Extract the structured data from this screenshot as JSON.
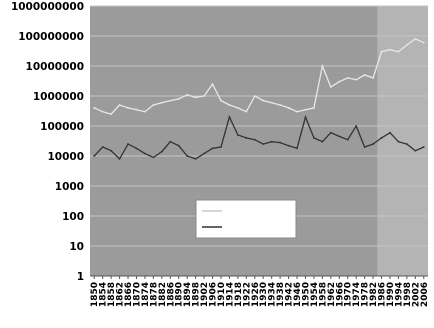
{
  "chart_data": {
    "type": "line",
    "title": "",
    "xlabel": "",
    "ylabel": "",
    "y_scale": "log",
    "ylim": [
      1,
      1000000000
    ],
    "y_tick_labels": [
      "1000000000",
      "100000000",
      "10000000",
      "1000000",
      "100000",
      "10000",
      "1000",
      "100",
      "10",
      "1"
    ],
    "categories": [
      "1850",
      "1854",
      "1858",
      "1862",
      "1866",
      "1870",
      "1874",
      "1878",
      "1882",
      "1886",
      "1890",
      "1894",
      "1898",
      "1902",
      "1906",
      "1910",
      "1914",
      "1918",
      "1922",
      "1926",
      "1930",
      "1934",
      "1938",
      "1942",
      "1946",
      "1950",
      "1954",
      "1958",
      "1962",
      "1966",
      "1970",
      "1974",
      "1978",
      "1982",
      "1986",
      "1990",
      "1994",
      "1998",
      "2002",
      "2006"
    ],
    "x_tick_labels": [
      "1850",
      "1854",
      "1858",
      "1862",
      "1866",
      "1870",
      "1874",
      "1878",
      "1882",
      "1886",
      "1890",
      "1894",
      "1898",
      "1902",
      "1906",
      "1910",
      "1914",
      "1918",
      "1922",
      "1926",
      "1930",
      "1934",
      "1938",
      "1942",
      "1946",
      "1950",
      "1954",
      "1958",
      "1962",
      "1966",
      "1970",
      "1974",
      "1978",
      "1982",
      "1986",
      "1990",
      "1994",
      "1998",
      "2002",
      "2006"
    ],
    "series": [
      {
        "name": "",
        "color": "#e8e8e8",
        "values": [
          400000,
          300000,
          250000,
          500000,
          400000,
          350000,
          300000,
          500000,
          600000,
          700000,
          800000,
          1100000,
          900000,
          1000000,
          2500000,
          700000,
          500000,
          400000,
          300000,
          1000000,
          700000,
          600000,
          500000,
          400000,
          300000,
          350000,
          400000,
          10000000,
          2000000,
          3000000,
          4000000,
          3500000,
          5000000,
          4000000,
          30000000,
          35000000,
          30000000,
          50000000,
          80000000,
          60000000
        ]
      },
      {
        "name": "",
        "color": "#333333",
        "values": [
          10000,
          20000,
          15000,
          8000,
          25000,
          18000,
          12000,
          9000,
          14000,
          30000,
          22000,
          10000,
          8000,
          12000,
          18000,
          20000,
          200000,
          50000,
          40000,
          35000,
          25000,
          30000,
          28000,
          22000,
          18000,
          200000,
          40000,
          30000,
          60000,
          45000,
          35000,
          100000,
          20000,
          25000,
          40000,
          60000,
          30000,
          25000,
          15000,
          20000
        ]
      }
    ],
    "shaded_band": {
      "from": "1986",
      "to": "2006"
    },
    "grid": true,
    "legend_position": "lower-center",
    "colors": {
      "plot_bg": "#9b9b9b",
      "plot_bg_shaded": "#b4b4b4",
      "grid": "#c4c4c4",
      "text": "#000000"
    }
  }
}
